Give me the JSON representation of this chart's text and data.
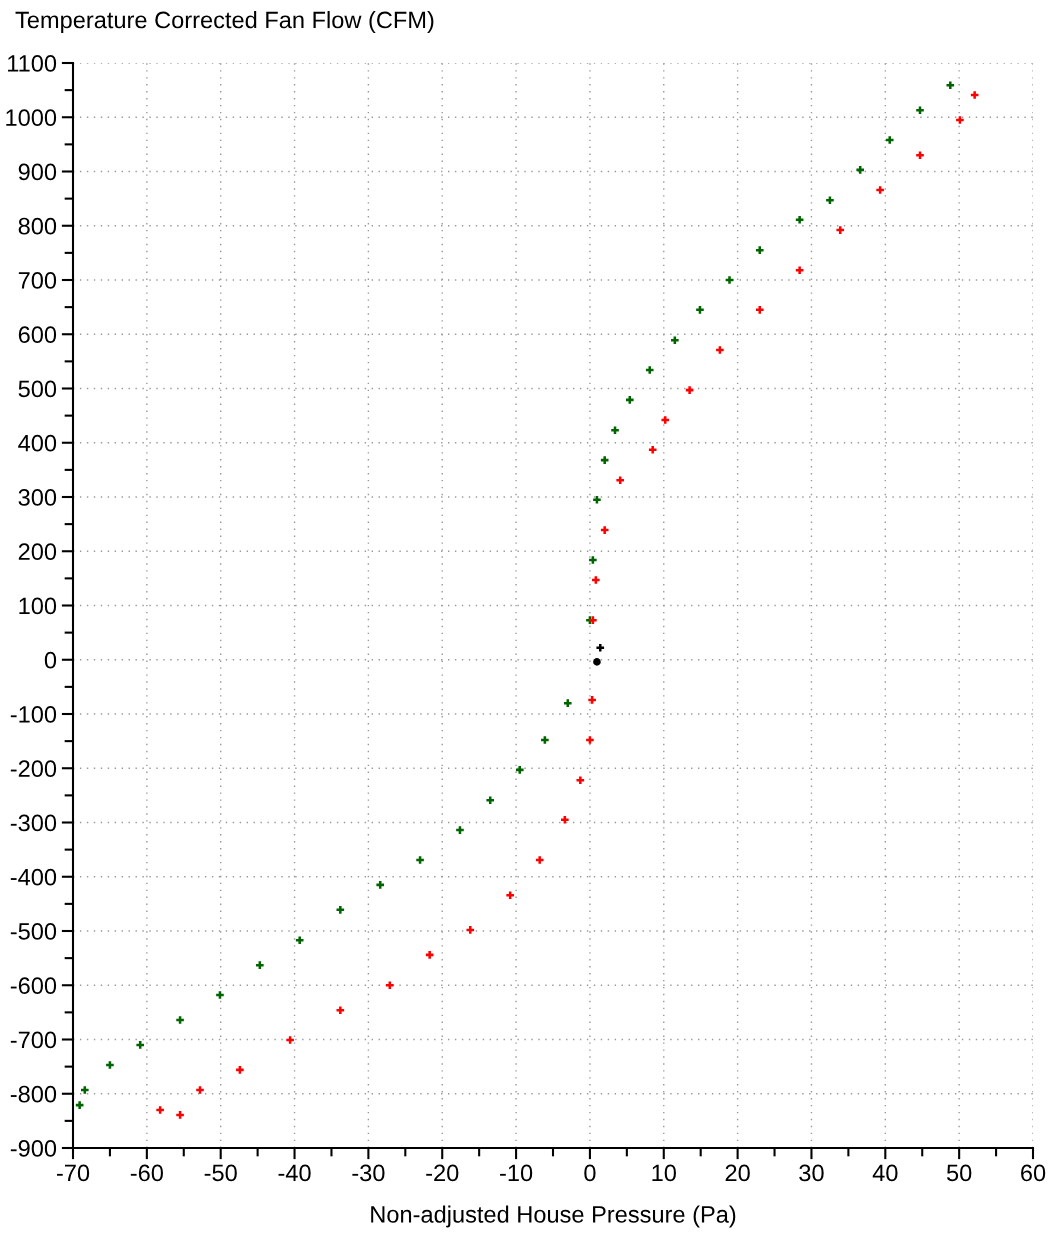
{
  "chart_data": {
    "type": "scatter",
    "xlabel": "Non-adjusted House Pressure (Pa)",
    "ylabel": "Temperature Corrected Fan Flow (CFM)",
    "xlim": [
      -70,
      60
    ],
    "xticks": [
      -70,
      -60,
      -50,
      -40,
      -30,
      -20,
      -10,
      0,
      10,
      20,
      30,
      40,
      50,
      60
    ],
    "ylim": [
      -900,
      1100
    ],
    "yticks": [
      -900,
      -800,
      -700,
      -600,
      -500,
      -400,
      -300,
      -200,
      -100,
      0,
      100,
      200,
      300,
      400,
      500,
      600,
      700,
      800,
      900,
      1000,
      1100
    ],
    "grid": true,
    "series": [
      {
        "color": "#006400",
        "marker": "cross",
        "x": [
          0.0,
          0.4,
          0.95,
          2.0,
          3.4,
          5.4,
          8.1,
          11.5,
          14.9,
          18.9,
          23.0,
          28.4,
          32.5,
          36.6,
          40.6,
          44.7,
          48.8,
          -3.0,
          -6.1,
          -9.5,
          -13.5,
          -17.6,
          -23.0,
          -28.4,
          -33.8,
          -39.3,
          -44.7,
          -50.1,
          -55.5,
          -60.9,
          -65.0,
          -68.4,
          -69.1
        ],
        "values": [
          73,
          184,
          295,
          368,
          423,
          479,
          534,
          589,
          645,
          700,
          755,
          811,
          847,
          903,
          958,
          1013,
          1059,
          -80,
          -148,
          -203,
          -259,
          -314,
          -369,
          -415,
          -461,
          -517,
          -563,
          -618,
          -664,
          -710,
          -747,
          -793,
          -821
        ]
      },
      {
        "color": "#ff0000",
        "marker": "cross",
        "x": [
          0.4,
          0.8,
          2.0,
          4.1,
          8.5,
          10.2,
          13.5,
          17.6,
          23.0,
          28.4,
          33.9,
          39.3,
          44.7,
          50.1,
          52.1,
          0.3,
          0.0,
          -1.3,
          -3.4,
          -6.8,
          -10.8,
          -16.2,
          -21.7,
          -27.1,
          -33.8,
          -40.6,
          -47.4,
          -52.8,
          -58.2,
          -55.5
        ],
        "values": [
          73,
          147,
          239,
          331,
          387,
          442,
          497,
          571,
          645,
          718,
          792,
          866,
          930,
          995,
          1041,
          -74,
          -148,
          -222,
          -295,
          -369,
          -434,
          -498,
          -544,
          -600,
          -646,
          -701,
          -756,
          -793,
          -830,
          -839
        ]
      },
      {
        "color": "#000000",
        "marker": "cross",
        "x": [
          1.4
        ],
        "values": [
          22
        ]
      },
      {
        "color": "#000000",
        "marker": "circle",
        "x": [
          0.95
        ],
        "values": [
          -4
        ]
      }
    ]
  }
}
